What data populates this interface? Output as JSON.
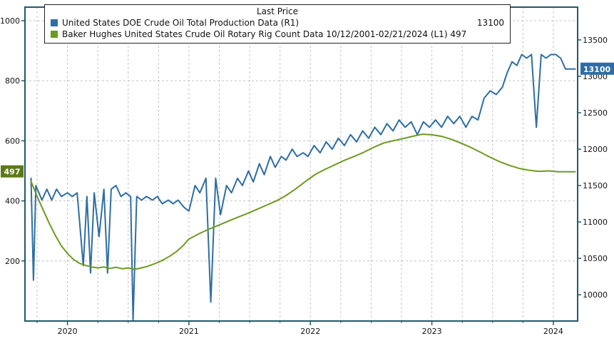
{
  "legend": {
    "title": "Last Price",
    "entries": [
      {
        "label": "United States DOE Crude Oil Total Production Data  (R1)",
        "value": "13100",
        "color": "#2e6da4"
      },
      {
        "label": "Baker Hughes United States Crude Oil Rotary Rig Count Data 10/12/2001-02/21/2024   (L1) 497",
        "value": "",
        "color": "#6d9a1f"
      }
    ]
  },
  "chart_data": {
    "type": "line",
    "title": "Last Price",
    "grid": "dashed",
    "colors": {
      "frame": "#215a68",
      "grid": "#c4c4c4",
      "text": "#111111"
    },
    "x_axis": {
      "ticks": [
        2020,
        2021,
        2022,
        2023,
        2024
      ],
      "min": 2019.65,
      "max": 2024.2,
      "minor_step": 0.25
    },
    "left_axis": {
      "ticks": [
        200,
        400,
        600,
        800,
        1000
      ],
      "min": 0,
      "max": 1045,
      "last_badge": 497,
      "badge_color": "#5c7a16"
    },
    "right_axis": {
      "ticks": [
        10000,
        10500,
        11000,
        11500,
        12000,
        12500,
        13000,
        13500
      ],
      "min": 9640,
      "max": 13950,
      "last_badge": 13100,
      "badge_color": "#2e6da4"
    },
    "series": [
      {
        "name": "United States DOE Crude Oil Total Production Data",
        "axis": "R1",
        "color": "#2e6da4",
        "last_price": 13100,
        "x": [
          2019.7,
          2019.72,
          2019.74,
          2019.79,
          2019.83,
          2019.87,
          2019.91,
          2019.95,
          2020.0,
          2020.04,
          2020.08,
          2020.13,
          2020.16,
          2020.19,
          2020.22,
          2020.26,
          2020.3,
          2020.33,
          2020.36,
          2020.4,
          2020.44,
          2020.48,
          2020.52,
          2020.54,
          2020.57,
          2020.61,
          2020.65,
          2020.7,
          2020.74,
          2020.78,
          2020.83,
          2020.87,
          2020.91,
          2020.96,
          2021.0,
          2021.05,
          2021.09,
          2021.14,
          2021.18,
          2021.22,
          2021.26,
          2021.31,
          2021.35,
          2021.4,
          2021.44,
          2021.49,
          2021.53,
          2021.58,
          2021.62,
          2021.67,
          2021.71,
          2021.76,
          2021.8,
          2021.85,
          2021.89,
          2021.94,
          2021.98,
          2022.03,
          2022.08,
          2022.13,
          2022.18,
          2022.23,
          2022.28,
          2022.33,
          2022.38,
          2022.43,
          2022.48,
          2022.53,
          2022.58,
          2022.63,
          2022.68,
          2022.73,
          2022.78,
          2022.83,
          2022.88,
          2022.93,
          2022.98,
          2023.03,
          2023.08,
          2023.13,
          2023.18,
          2023.23,
          2023.28,
          2023.33,
          2023.38,
          2023.43,
          2023.48,
          2023.53,
          2023.58,
          2023.62,
          2023.66,
          2023.7,
          2023.74,
          2023.78,
          2023.82,
          2023.86,
          2023.9,
          2023.94,
          2023.98,
          2024.02,
          2024.06,
          2024.1,
          2024.14,
          2024.18
        ],
        "values": [
          11600,
          10200,
          11500,
          11300,
          11450,
          11300,
          11450,
          11350,
          11400,
          11350,
          11400,
          10400,
          11350,
          10300,
          11400,
          10800,
          11450,
          10300,
          11450,
          11500,
          11350,
          11400,
          11350,
          9650,
          11350,
          11300,
          11350,
          11300,
          11350,
          11250,
          11300,
          11250,
          11300,
          11200,
          11150,
          11500,
          11400,
          11600,
          9900,
          11600,
          11100,
          11500,
          11400,
          11600,
          11500,
          11700,
          11550,
          11800,
          11650,
          11900,
          11750,
          11900,
          11850,
          12000,
          11900,
          11950,
          11900,
          12050,
          11950,
          12100,
          12000,
          12150,
          12050,
          12200,
          12100,
          12250,
          12150,
          12300,
          12200,
          12350,
          12250,
          12400,
          12300,
          12375,
          12200,
          12375,
          12300,
          12400,
          12300,
          12450,
          12350,
          12450,
          12300,
          12450,
          12400,
          12700,
          12800,
          12750,
          12850,
          13050,
          13200,
          13150,
          13300,
          13250,
          13300,
          12300,
          13300,
          13250,
          13300,
          13300,
          13250,
          13100,
          13100,
          13100
        ]
      },
      {
        "name": "Baker Hughes United States Crude Oil Rotary Rig Count Data 10/12/2001-02/21/2024",
        "axis": "L1",
        "color": "#6d9a1f",
        "last_price": 497,
        "x": [
          2019.7,
          2019.75,
          2019.8,
          2019.85,
          2019.9,
          2019.95,
          2020.0,
          2020.05,
          2020.1,
          2020.15,
          2020.2,
          2020.25,
          2020.3,
          2020.35,
          2020.4,
          2020.45,
          2020.5,
          2020.55,
          2020.6,
          2020.65,
          2020.7,
          2020.75,
          2020.8,
          2020.85,
          2020.9,
          2020.95,
          2021.0,
          2021.08,
          2021.16,
          2021.24,
          2021.32,
          2021.4,
          2021.48,
          2021.56,
          2021.64,
          2021.72,
          2021.8,
          2021.88,
          2021.96,
          2022.04,
          2022.12,
          2022.2,
          2022.28,
          2022.36,
          2022.44,
          2022.52,
          2022.6,
          2022.68,
          2022.76,
          2022.84,
          2022.92,
          2023.0,
          2023.08,
          2023.16,
          2023.24,
          2023.32,
          2023.4,
          2023.48,
          2023.56,
          2023.64,
          2023.72,
          2023.8,
          2023.88,
          2023.96,
          2024.04,
          2024.12,
          2024.18
        ],
        "values": [
          465,
          415,
          370,
          325,
          285,
          250,
          225,
          205,
          192,
          185,
          180,
          177,
          180,
          175,
          179,
          174,
          177,
          172,
          176,
          181,
          188,
          196,
          206,
          218,
          232,
          250,
          273,
          290,
          305,
          318,
          332,
          345,
          358,
          372,
          386,
          400,
          418,
          440,
          465,
          488,
          505,
          520,
          535,
          548,
          562,
          578,
          592,
          600,
          607,
          615,
          622,
          620,
          615,
          605,
          592,
          578,
          562,
          545,
          530,
          518,
          508,
          502,
          498,
          500,
          497,
          497,
          497
        ]
      }
    ]
  }
}
